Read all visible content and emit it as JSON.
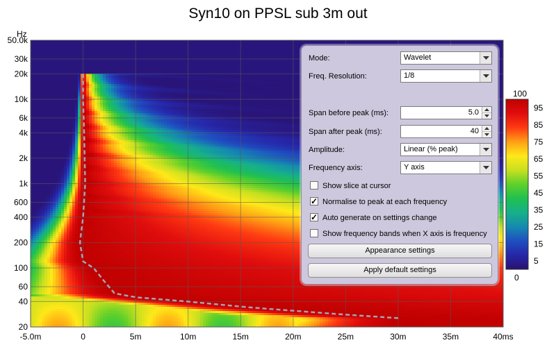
{
  "chart_data": {
    "type": "heatmap",
    "title": "Syn10 on PPSL sub 3m out",
    "xlabel": "ms",
    "ylabel": "Hz",
    "x_range": [
      -5,
      40
    ],
    "y_range": [
      20,
      50000
    ],
    "y_scale": "log",
    "x_ticks": [
      {
        "v": -5,
        "label": "-5.0m"
      },
      {
        "v": 0,
        "label": "0"
      },
      {
        "v": 5,
        "label": "5m"
      },
      {
        "v": 10,
        "label": "10m"
      },
      {
        "v": 15,
        "label": "15m"
      },
      {
        "v": 20,
        "label": "20m"
      },
      {
        "v": 25,
        "label": "25m"
      },
      {
        "v": 30,
        "label": "30m"
      },
      {
        "v": 35,
        "label": "35m"
      },
      {
        "v": 40,
        "label": "40ms"
      }
    ],
    "y_ticks": [
      {
        "v": 50000,
        "label": "50.0k"
      },
      {
        "v": 30000,
        "label": "30k"
      },
      {
        "v": 20000,
        "label": "20k"
      },
      {
        "v": 10000,
        "label": "10k"
      },
      {
        "v": 6000,
        "label": "6k"
      },
      {
        "v": 4000,
        "label": "4k"
      },
      {
        "v": 2000,
        "label": "2k"
      },
      {
        "v": 1000,
        "label": "1k"
      },
      {
        "v": 600,
        "label": "600"
      },
      {
        "v": 400,
        "label": "400"
      },
      {
        "v": 200,
        "label": "200"
      },
      {
        "v": 100,
        "label": "100"
      },
      {
        "v": 60,
        "label": "60"
      },
      {
        "v": 40,
        "label": "40"
      },
      {
        "v": 20,
        "label": "20"
      }
    ],
    "y_unit_label": "Hz",
    "peak_curve": [
      {
        "f": 20000,
        "t": 0.0
      },
      {
        "f": 10000,
        "t": 0.0
      },
      {
        "f": 4000,
        "t": 0.1
      },
      {
        "f": 1000,
        "t": 0.2
      },
      {
        "f": 400,
        "t": 0.0
      },
      {
        "f": 200,
        "t": -0.3
      },
      {
        "f": 120,
        "t": 0.0
      },
      {
        "f": 100,
        "t": 1.0
      },
      {
        "f": 70,
        "t": 2.0
      },
      {
        "f": 50,
        "t": 3.0
      },
      {
        "f": 45,
        "t": 5.0
      },
      {
        "f": 40,
        "t": 10.0
      },
      {
        "f": 34,
        "t": 16.0
      },
      {
        "f": 28,
        "t": 25.0
      },
      {
        "f": 25,
        "t": 31.0
      }
    ],
    "colorbar": {
      "min": 0,
      "max": 100,
      "min_label": "0",
      "max_label": "100",
      "labels": [
        "95",
        "85",
        "75",
        "65",
        "55",
        "45",
        "35",
        "25",
        "15",
        "5"
      ],
      "label_values": [
        95,
        85,
        75,
        65,
        55,
        45,
        35,
        25,
        15,
        5
      ],
      "colors": [
        "#2a1170",
        "#2626a8",
        "#1f4ec0",
        "#158ab0",
        "#16b08a",
        "#1fc050",
        "#5fd02a",
        "#c8e020",
        "#ffe818",
        "#ffa015",
        "#ff3a12",
        "#e00d0d",
        "#c00000"
      ]
    }
  },
  "settings_panel": {
    "mode": {
      "label": "Mode:",
      "value": "Wavelet"
    },
    "freq_resolution": {
      "label": "Freq. Resolution:",
      "value": "1/8"
    },
    "span_before": {
      "label": "Span before peak (ms):",
      "value": "5.0"
    },
    "span_after": {
      "label": "Span after peak (ms):",
      "value": "40"
    },
    "amplitude": {
      "label": "Amplitude:",
      "value": "Linear (% peak)"
    },
    "frequency_axis": {
      "label": "Frequency axis:",
      "value": "Y axis"
    },
    "show_slice": {
      "label": "Show slice at cursor",
      "checked": false
    },
    "normalise": {
      "label": "Normalise to peak at each frequency",
      "checked": true
    },
    "auto_generate": {
      "label": "Auto generate on settings change",
      "checked": true
    },
    "show_bands": {
      "label": "Show frequency bands when X axis is frequency",
      "checked": false
    },
    "appearance_button": "Appearance settings",
    "defaults_button": "Apply default settings"
  }
}
